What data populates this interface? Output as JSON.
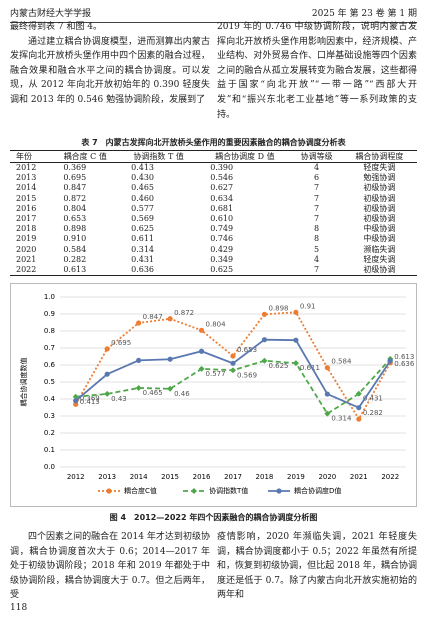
{
  "header": {
    "journal": "内蒙古财经大学学报",
    "issue": "2025 年 第 23 卷 第 1 期"
  },
  "text_top_left": [
    "最终得到表 7 和图 4。",
    "通过建立耦合协调度模型，进而测算出内蒙古发挥向北开放桥头堡作用中四个因素的融合过程，融合效果和融合水平之间的耦合协调度。可以发现，从 2012 年向北开放初始年的 0.390 轻度失调和 2013 年的 0.546 勉强协调阶段，发展到了"
  ],
  "text_top_right": "2019 年的 0.746 中级协调阶段，说明内蒙古发挥向北开放桥头堡作用影响因素中，经济规模、产业结构、对外贸易合作、口岸基础设施等四个因素之间的融合从孤立发展转变为融合发展，这些都得益于国家“向北开放”“一带一路”“西部大开发”和“振兴东北老工业基地”等一系列政策的支持。",
  "table": {
    "title": "表 7　内蒙古发挥向北开放桥头堡作用的重要因素融合的耦合协调度分析表",
    "columns": [
      "年份",
      "耦合度 C 值",
      "协调指数 T 值",
      "耦合协调度 D 值",
      "协调等级",
      "耦合协调程度"
    ],
    "rows": [
      [
        "2012",
        "0.369",
        "0.413",
        "0.390",
        "4",
        "轻度失调"
      ],
      [
        "2013",
        "0.695",
        "0.430",
        "0.546",
        "6",
        "勉强协调"
      ],
      [
        "2014",
        "0.847",
        "0.465",
        "0.627",
        "7",
        "初级协调"
      ],
      [
        "2015",
        "0.872",
        "0.460",
        "0.634",
        "7",
        "初级协调"
      ],
      [
        "2016",
        "0.804",
        "0.577",
        "0.681",
        "7",
        "初级协调"
      ],
      [
        "2017",
        "0.653",
        "0.569",
        "0.610",
        "7",
        "初级协调"
      ],
      [
        "2018",
        "0.898",
        "0.625",
        "0.749",
        "8",
        "中级协调"
      ],
      [
        "2019",
        "0.910",
        "0.611",
        "0.746",
        "8",
        "中级协调"
      ],
      [
        "2020",
        "0.584",
        "0.314",
        "0.429",
        "5",
        "濒临失调"
      ],
      [
        "2021",
        "0.282",
        "0.431",
        "0.349",
        "4",
        "轻度失调"
      ],
      [
        "2022",
        "0.613",
        "0.636",
        "0.625",
        "7",
        "初级协调"
      ]
    ]
  },
  "figure": {
    "chart_data": {
      "type": "line",
      "y_label": "耦合协调度数值",
      "categories": [
        "2012",
        "2013",
        "2014",
        "2015",
        "2016",
        "2017",
        "2018",
        "2019",
        "2020",
        "2021",
        "2022"
      ],
      "ylim": [
        0,
        1
      ],
      "yticks": [
        {
          "value": 0,
          "label": "0.0"
        },
        {
          "value": 0.1,
          "label": "0.1"
        },
        {
          "value": 0.2,
          "label": "0.2"
        },
        {
          "value": 0.3,
          "label": "0.3"
        },
        {
          "value": 0.4,
          "label": "0.4"
        },
        {
          "value": 0.5,
          "label": "0.5"
        },
        {
          "value": 0.6,
          "label": "0.6"
        },
        {
          "value": 0.7,
          "label": "0.7"
        },
        {
          "value": 0.8,
          "label": "0.8"
        },
        {
          "value": 0.9,
          "label": "0.9"
        },
        {
          "value": 1,
          "label": "1.0"
        }
      ],
      "grid": true,
      "series": [
        {
          "name": "耦合度C值",
          "color": "#ed7d31",
          "values": [
            0.369,
            0.695,
            0.847,
            0.872,
            0.804,
            0.653,
            0.898,
            0.91,
            0.584,
            0.282,
            0.613
          ]
        },
        {
          "name": "协调指数T值",
          "color": "#4ea84a",
          "values": [
            0.413,
            0.43,
            0.465,
            0.46,
            0.577,
            0.569,
            0.625,
            0.611,
            0.314,
            0.431,
            0.636
          ]
        },
        {
          "name": "耦合协调度D值",
          "color": "#5a78b0",
          "values": [
            0.39,
            0.546,
            0.627,
            0.634,
            0.681,
            0.61,
            0.749,
            0.746,
            0.429,
            0.349,
            0.625
          ]
        }
      ]
    },
    "caption": "图 4　2012—2022 年四个因素融合的耦合协调度分析图"
  },
  "text_bottom_left": "四个因素之间的融合在 2014 年才达到初级协调，耦合协调度首次大于 0.6；2014—2017 年处于初级协调阶段；2018 年和 2019 年都处于中级协调阶段，耦合协调度大于 0.7。但之后两年，受",
  "text_bottom_right": "疫情影响，2020 年濒临失调，2021 年轻度失调，耦合协调度都小于 0.5；2022 年虽然有所提和，恢复到初级协调，但比起 2018 年，耦合协调度还是低于 0.7。除了内蒙古向北开放实施初始的两年和",
  "page_number": "118"
}
